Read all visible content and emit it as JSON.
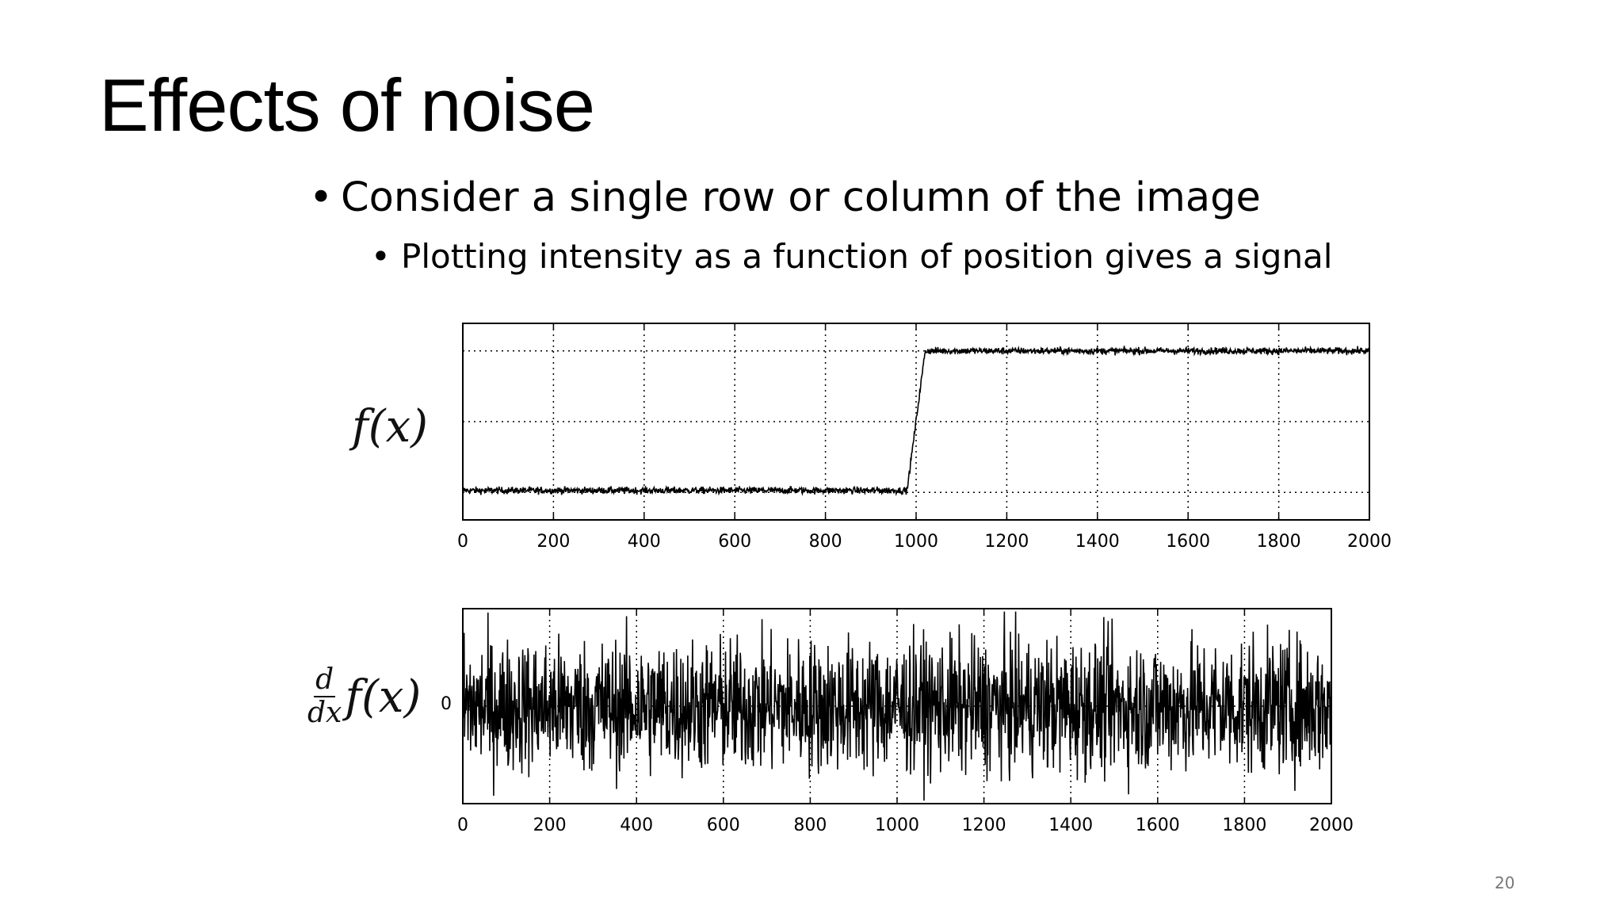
{
  "slide": {
    "title": "Effects of noise",
    "bullet_1": "Consider a single row or column of the image",
    "bullet_2": "Plotting intensity as a function of position gives a signal",
    "page_number": "20"
  },
  "chart_data": [
    {
      "type": "line",
      "ylabel": "f(x)",
      "xlabel": "",
      "title": "",
      "xlim": [
        0,
        2000
      ],
      "ylim": [
        0,
        1
      ],
      "x_ticks": [
        0,
        200,
        400,
        600,
        800,
        1000,
        1200,
        1400,
        1600,
        1800,
        2000
      ],
      "grid": true,
      "series": [
        {
          "description_points": [
            [
              0,
              0.15
            ],
            [
              980,
              0.15
            ],
            [
              1020,
              0.86
            ],
            [
              2000,
              0.86
            ]
          ],
          "noise_amplitude": 0.03,
          "color": "#000000"
        }
      ]
    },
    {
      "type": "line",
      "ylabel_numerator": "d",
      "ylabel_denominator": "dx",
      "ylabel_function": "f(x)",
      "y_tick": "0",
      "xlabel": "",
      "title": "",
      "xlim": [
        0,
        2000
      ],
      "ylim": [
        -1,
        1
      ],
      "x_ticks": [
        0,
        200,
        400,
        600,
        800,
        1000,
        1200,
        1400,
        1600,
        1800,
        2000
      ],
      "grid": true,
      "series": [
        {
          "mean": 0,
          "noise_amplitude": 0.9,
          "color": "#000000"
        }
      ]
    }
  ]
}
